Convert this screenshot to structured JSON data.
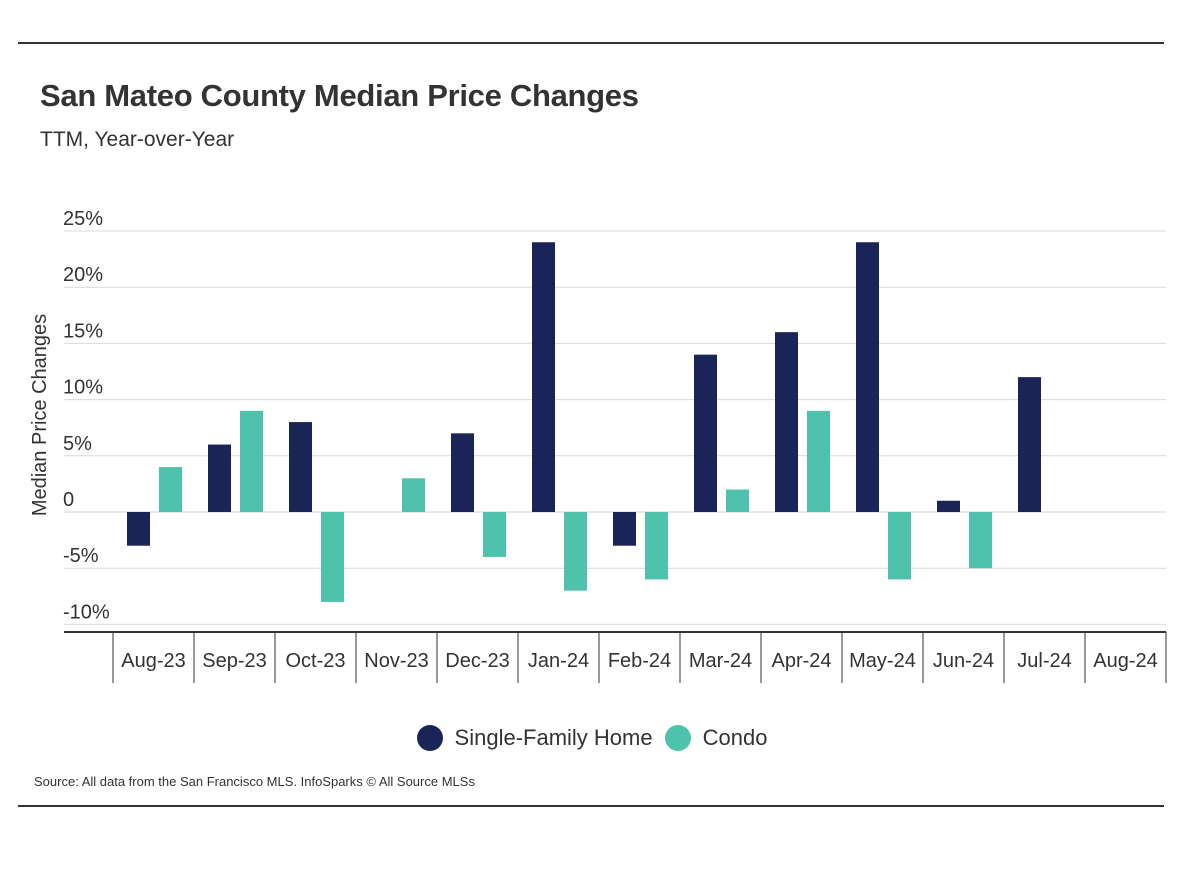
{
  "header": {
    "title": "San Mateo County Median Price Changes",
    "subtitle": "TTM, Year-over-Year"
  },
  "colors": {
    "single_family": "#1b2456",
    "condo": "#4fc2ac",
    "grid": "#d9d9d9",
    "axis": "#333333"
  },
  "chart_data": {
    "type": "bar",
    "title": "San Mateo County Median Price Changes",
    "subtitle": "TTM, Year-over-Year",
    "xlabel": "",
    "ylabel": "Median Price Changes",
    "ylim": [
      -10,
      25
    ],
    "yticks": [
      25,
      20,
      15,
      10,
      5,
      0,
      -5,
      -10
    ],
    "ytick_labels": [
      "25%",
      "20%",
      "15%",
      "10%",
      "5%",
      "0",
      "-5%",
      "-10%"
    ],
    "grid": true,
    "legend_position": "bottom-center",
    "categories": [
      "Aug-23",
      "Sep-23",
      "Oct-23",
      "Nov-23",
      "Dec-23",
      "Jan-24",
      "Feb-24",
      "Mar-24",
      "Apr-24",
      "May-24",
      "Jun-24",
      "Jul-24",
      "Aug-24"
    ],
    "series": [
      {
        "name": "Single-Family Home",
        "values": [
          -3,
          6,
          8,
          null,
          7,
          24,
          -3,
          14,
          16,
          24,
          1,
          12,
          null
        ]
      },
      {
        "name": "Condo",
        "values": [
          4,
          9,
          -8,
          3,
          -4,
          -7,
          -6,
          2,
          9,
          -6,
          -5,
          null,
          null
        ]
      }
    ]
  },
  "footer": {
    "source": "Source:  All data from the San Francisco MLS. InfoSparks © All Source MLSs"
  }
}
